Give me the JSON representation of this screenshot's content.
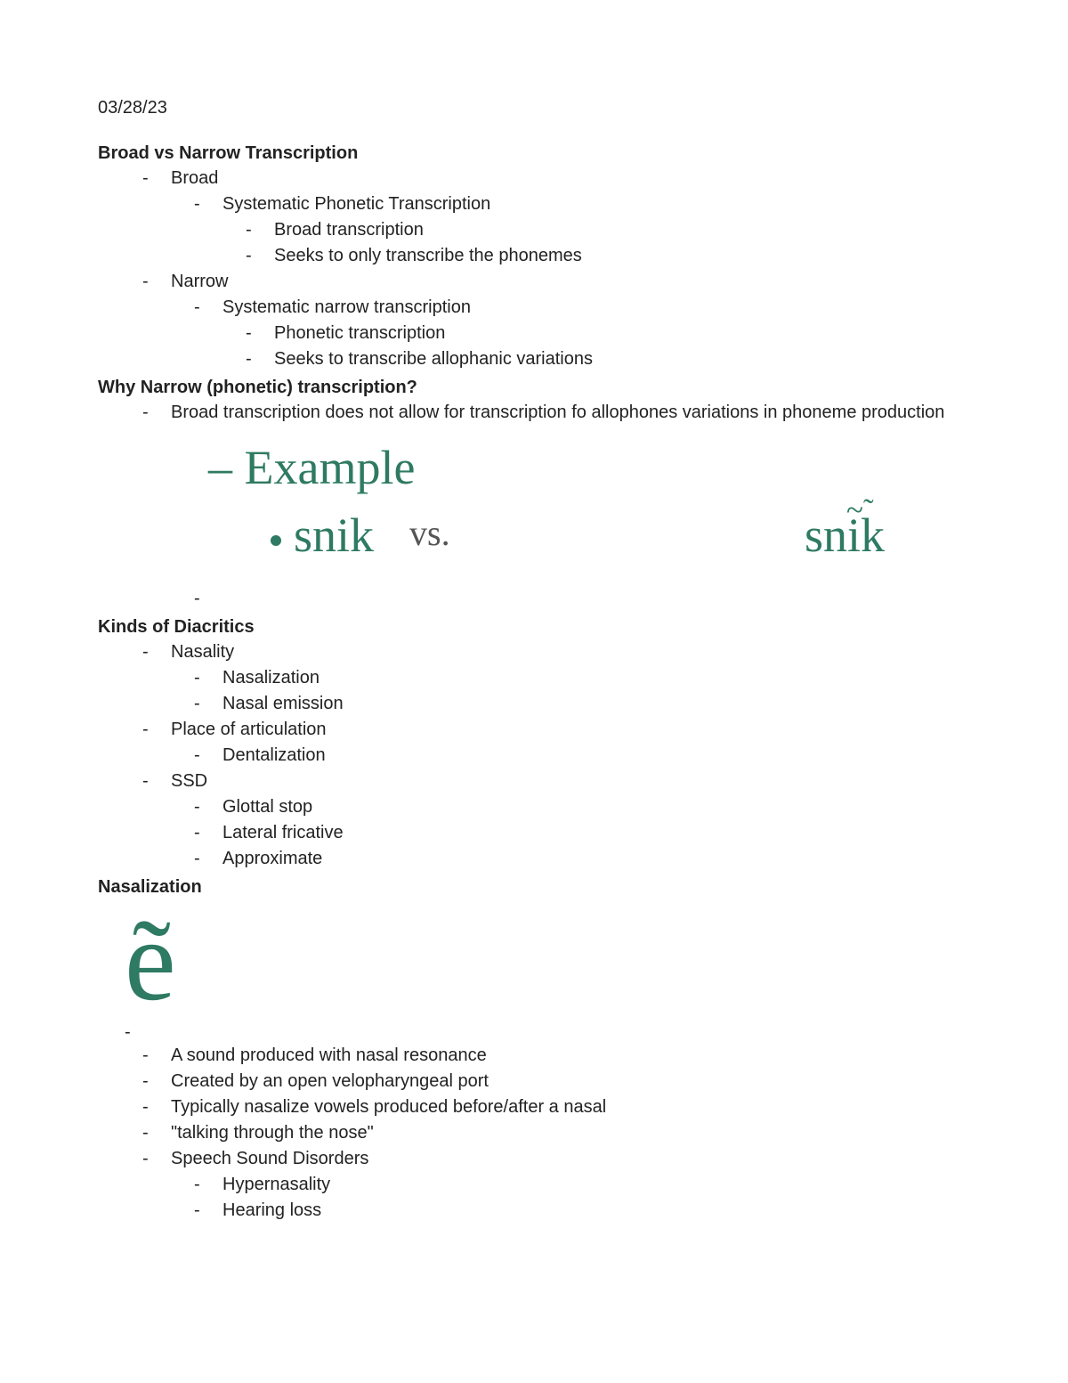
{
  "date": "03/28/23",
  "h1": "Broad vs Narrow Transcription",
  "broad": {
    "label": "Broad",
    "sub1": "Systematic Phonetic Transcription",
    "sub1a": "Broad transcription",
    "sub1b": "Seeks to only transcribe the phonemes"
  },
  "narrow": {
    "label": "Narrow",
    "sub1": "Systematic narrow transcription",
    "sub1a": "Phonetic transcription",
    "sub1b": "Seeks to transcribe allophanic variations"
  },
  "h2": "Why Narrow (phonetic) transcription?",
  "why1": "Broad transcription does not allow for transcription fo allophones variations in phoneme production",
  "example": {
    "label": "– Example",
    "left": "snik",
    "vs": "vs.",
    "right_prefix": "sn",
    "right_i": "i",
    "right_diac": "~̃",
    "right_suffix": "k"
  },
  "h3": "Kinds of Diacritics",
  "diacritics": {
    "nasality": "Nasality",
    "nasality_a": "Nasalization",
    "nasality_b": "Nasal emission",
    "place": "Place of articulation",
    "place_a": "Dentalization",
    "ssd": "SSD",
    "ssd_a": "Glottal stop",
    "ssd_b": "Lateral fricative",
    "ssd_c": "Approximate"
  },
  "h4": "Nasalization",
  "nasal_glyph": "ẽ",
  "nasal": {
    "a": "A sound produced with nasal resonance",
    "b": "Created by an open velopharyngeal port",
    "c": "Typically nasalize vowels produced before/after a nasal",
    "d": "\"talking through the nose\"",
    "e": "Speech Sound Disorders",
    "e1": "Hypernasality",
    "e2": "Hearing loss"
  },
  "colors": {
    "accent": "#2e7a62",
    "text": "#222222",
    "background": "#ffffff"
  }
}
